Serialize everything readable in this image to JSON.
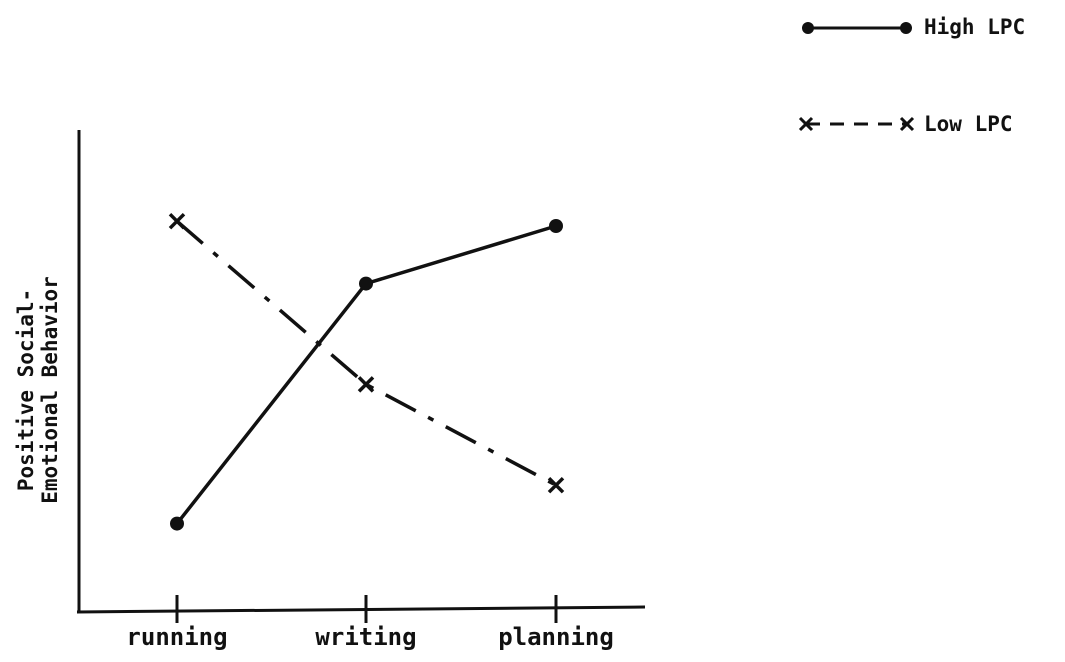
{
  "chart_data": {
    "type": "line",
    "title": "",
    "xlabel": "",
    "ylabel_lines": [
      "Positive Social-",
      "Emotional Behavior"
    ],
    "categories": [
      "running",
      "writing",
      "planning"
    ],
    "ylim": [
      0,
      10
    ],
    "y_ticks_shown": false,
    "grid": false,
    "legend_position": "top-right",
    "series": [
      {
        "name": "High LPC",
        "values": [
          1.8,
          6.8,
          8.0
        ],
        "marker": "circle",
        "line_style": "solid",
        "color": "#111111"
      },
      {
        "name": "Low LPC",
        "values": [
          8.1,
          4.7,
          2.6
        ],
        "marker": "x",
        "line_style": "dash-dot",
        "color": "#111111"
      }
    ]
  }
}
